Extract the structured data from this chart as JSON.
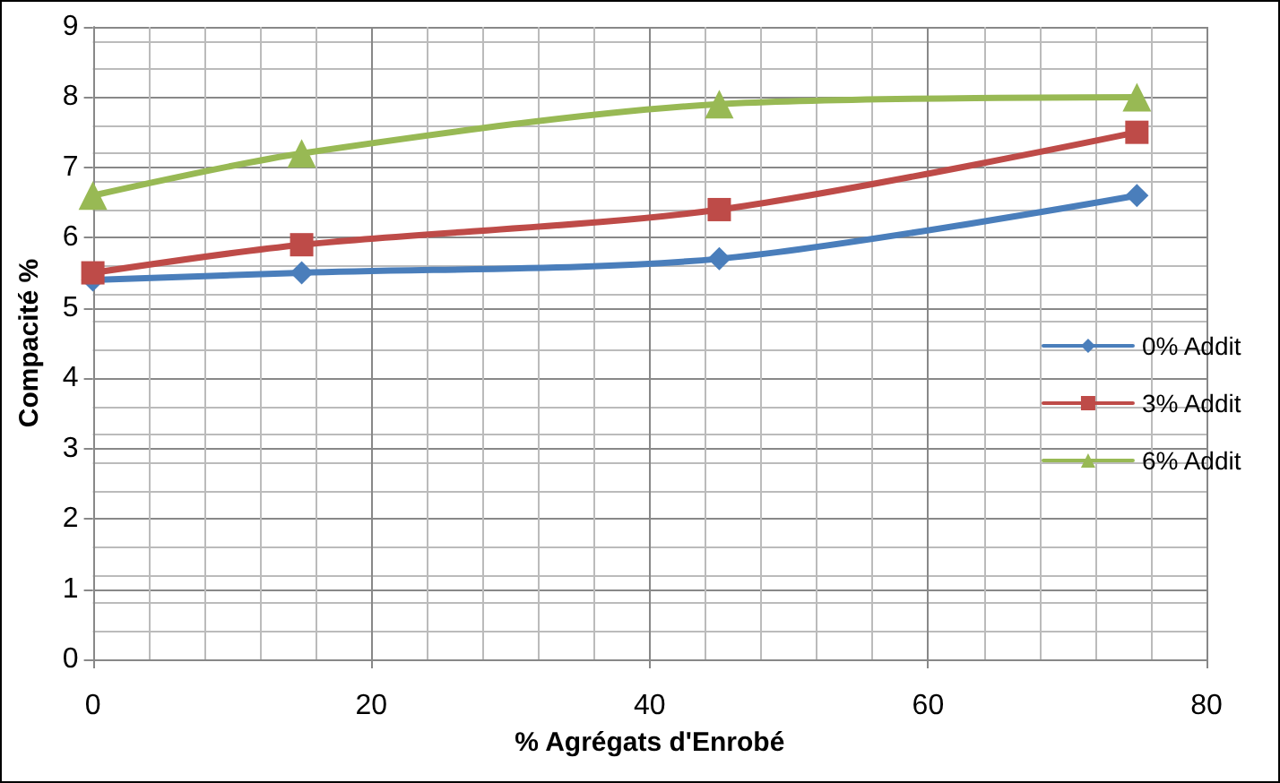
{
  "chart_data": {
    "type": "line",
    "xlabel": "% Agrégats d'Enrobé",
    "ylabel": "Compacité %",
    "x": [
      0,
      15,
      45,
      75
    ],
    "series": [
      {
        "name": "0% Addit",
        "color": "#4a7ebb",
        "marker": "diamond",
        "values": [
          5.4,
          5.5,
          5.7,
          6.6
        ]
      },
      {
        "name": "3% Addit",
        "color": "#be4b48",
        "marker": "square",
        "values": [
          5.5,
          5.9,
          6.4,
          7.5
        ]
      },
      {
        "name": "6% Addit",
        "color": "#98b954",
        "marker": "triangle",
        "values": [
          6.6,
          7.2,
          7.9,
          8.0
        ]
      }
    ],
    "xlim": [
      0,
      80
    ],
    "xticks": [
      0,
      20,
      40,
      60,
      80
    ],
    "ylim": [
      0,
      9
    ],
    "yticks": [
      0,
      1,
      2,
      3,
      4,
      5,
      6,
      7,
      8,
      9
    ],
    "grid": true,
    "legend": "right",
    "line_style": "solid"
  }
}
